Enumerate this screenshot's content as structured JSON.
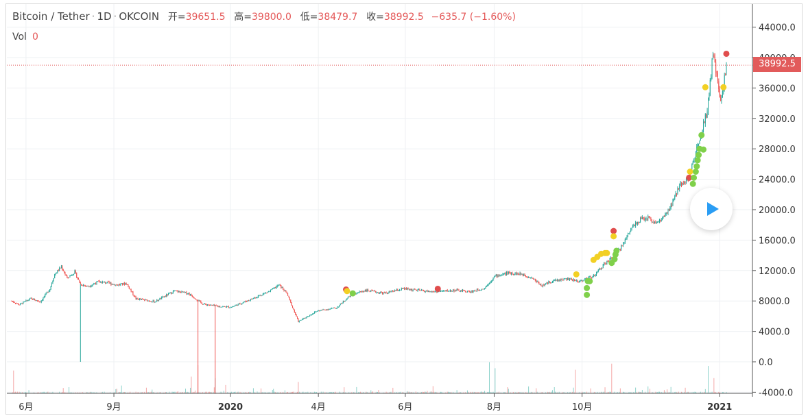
{
  "legend": {
    "symbol": "Bitcoin / Tether",
    "interval": "1D",
    "exchange": "OKCOIN",
    "open_label": "开=",
    "open": "39651.5",
    "high_label": "高=",
    "high": "39800.0",
    "low_label": "低=",
    "low": "38479.7",
    "close_label": "收=",
    "close": "38992.5",
    "change": "−635.7 (−1.60%)",
    "vol_label": "Vol",
    "vol_value": "0"
  },
  "last_price_tag": "38992.5",
  "colors": {
    "up": "#26a69a",
    "down": "#ef5350",
    "accent": "#2a9df4",
    "price_tag": "#e25b5b"
  },
  "controls": {
    "play_icon": "play-icon"
  },
  "chart_data": {
    "type": "candlestick",
    "title": "Bitcoin / Tether · 1D · OKCOIN",
    "y_axis": {
      "ticks": [
        44000,
        40000,
        36000,
        32000,
        28000,
        24000,
        20000,
        16000,
        12000,
        8000,
        4000,
        0,
        -4000
      ],
      "tick_labels": [
        "44000.0",
        "40000.0",
        "36000.0",
        "32000.0",
        "28000.0",
        "24000.0",
        "20000.0",
        "16000.0",
        "12000.0",
        "8000.0",
        "4000.0",
        "0.0",
        "-4000.0"
      ],
      "range": [
        -4200,
        46000
      ],
      "grid": true,
      "position": "right"
    },
    "x_axis": {
      "tick_labels": [
        "6月",
        "9月",
        "2020",
        "4月",
        "6月",
        "8月",
        "10月",
        "2021"
      ],
      "tick_days": [
        15,
        107,
        229,
        321,
        412,
        505,
        597,
        741
      ],
      "bold": [
        false,
        false,
        true,
        false,
        false,
        false,
        false,
        true
      ],
      "grid": true,
      "start_date": "2019-05-17",
      "end_date": "2021-01-24"
    },
    "price_anchors": [
      {
        "day": 0,
        "price": 8000
      },
      {
        "day": 8,
        "price": 7500
      },
      {
        "day": 20,
        "price": 8300
      },
      {
        "day": 30,
        "price": 7900
      },
      {
        "day": 40,
        "price": 9600
      },
      {
        "day": 45,
        "price": 11500
      },
      {
        "day": 52,
        "price": 12500
      },
      {
        "day": 58,
        "price": 11000
      },
      {
        "day": 66,
        "price": 11800
      },
      {
        "day": 72,
        "price": 10200
      },
      {
        "day": 80,
        "price": 9900
      },
      {
        "day": 90,
        "price": 10500
      },
      {
        "day": 100,
        "price": 10400
      },
      {
        "day": 110,
        "price": 10100
      },
      {
        "day": 120,
        "price": 10300
      },
      {
        "day": 130,
        "price": 8300
      },
      {
        "day": 150,
        "price": 7900
      },
      {
        "day": 170,
        "price": 9300
      },
      {
        "day": 185,
        "price": 9000
      },
      {
        "day": 200,
        "price": 7600
      },
      {
        "day": 215,
        "price": 7300
      },
      {
        "day": 230,
        "price": 7200
      },
      {
        "day": 250,
        "price": 8200
      },
      {
        "day": 270,
        "price": 9300
      },
      {
        "day": 280,
        "price": 10100
      },
      {
        "day": 288,
        "price": 9000
      },
      {
        "day": 300,
        "price": 5300
      },
      {
        "day": 320,
        "price": 6700
      },
      {
        "day": 340,
        "price": 7100
      },
      {
        "day": 355,
        "price": 8800
      },
      {
        "day": 370,
        "price": 9400
      },
      {
        "day": 390,
        "price": 9000
      },
      {
        "day": 410,
        "price": 9600
      },
      {
        "day": 440,
        "price": 9200
      },
      {
        "day": 465,
        "price": 9400
      },
      {
        "day": 480,
        "price": 9200
      },
      {
        "day": 495,
        "price": 9700
      },
      {
        "day": 505,
        "price": 11200
      },
      {
        "day": 520,
        "price": 11700
      },
      {
        "day": 535,
        "price": 11500
      },
      {
        "day": 545,
        "price": 11000
      },
      {
        "day": 555,
        "price": 10000
      },
      {
        "day": 565,
        "price": 10600
      },
      {
        "day": 580,
        "price": 10900
      },
      {
        "day": 595,
        "price": 10600
      },
      {
        "day": 610,
        "price": 11400
      },
      {
        "day": 620,
        "price": 12800
      },
      {
        "day": 630,
        "price": 13800
      },
      {
        "day": 640,
        "price": 15500
      },
      {
        "day": 648,
        "price": 17500
      },
      {
        "day": 655,
        "price": 18500
      },
      {
        "day": 665,
        "price": 19000
      },
      {
        "day": 675,
        "price": 18200
      },
      {
        "day": 685,
        "price": 19300
      },
      {
        "day": 692,
        "price": 21000
      },
      {
        "day": 700,
        "price": 23500
      },
      {
        "day": 708,
        "price": 24000
      },
      {
        "day": 716,
        "price": 27500
      },
      {
        "day": 722,
        "price": 30500
      },
      {
        "day": 728,
        "price": 33000
      },
      {
        "day": 734,
        "price": 40500
      },
      {
        "day": 738,
        "price": 37500
      },
      {
        "day": 742,
        "price": 34000
      },
      {
        "day": 748,
        "price": 38992.5
      }
    ],
    "spikes": [
      {
        "day": 72,
        "low": 0
      },
      {
        "day": 195,
        "low": -4200
      },
      {
        "day": 213,
        "low": -4200
      }
    ],
    "signals": [
      {
        "day": 350,
        "price": 9500,
        "color": "red"
      },
      {
        "day": 351,
        "price": 9300,
        "color": "yellow"
      },
      {
        "day": 357,
        "price": 9000,
        "color": "green"
      },
      {
        "day": 446,
        "price": 9600,
        "color": "red"
      },
      {
        "day": 591,
        "price": 11500,
        "color": "yellow"
      },
      {
        "day": 603,
        "price": 10600,
        "color": "green"
      },
      {
        "day": 605,
        "price": 10600,
        "color": "green"
      },
      {
        "day": 602,
        "price": 9700,
        "color": "green"
      },
      {
        "day": 602,
        "price": 8800,
        "color": "green"
      },
      {
        "day": 609,
        "price": 13400,
        "color": "yellow"
      },
      {
        "day": 613,
        "price": 13800,
        "color": "yellow"
      },
      {
        "day": 617,
        "price": 14200,
        "color": "yellow"
      },
      {
        "day": 621,
        "price": 14300,
        "color": "yellow"
      },
      {
        "day": 623,
        "price": 14300,
        "color": "yellow"
      },
      {
        "day": 630,
        "price": 17200,
        "color": "red"
      },
      {
        "day": 630,
        "price": 16500,
        "color": "yellow"
      },
      {
        "day": 628,
        "price": 13000,
        "color": "green"
      },
      {
        "day": 631,
        "price": 13500,
        "color": "green"
      },
      {
        "day": 632,
        "price": 14100,
        "color": "green"
      },
      {
        "day": 633,
        "price": 14600,
        "color": "green"
      },
      {
        "day": 709,
        "price": 24200,
        "color": "red"
      },
      {
        "day": 710,
        "price": 25000,
        "color": "yellow"
      },
      {
        "day": 713,
        "price": 23400,
        "color": "green"
      },
      {
        "day": 714,
        "price": 24200,
        "color": "green"
      },
      {
        "day": 716,
        "price": 25000,
        "color": "green"
      },
      {
        "day": 717,
        "price": 25700,
        "color": "green"
      },
      {
        "day": 718,
        "price": 26500,
        "color": "green"
      },
      {
        "day": 719,
        "price": 27200,
        "color": "green"
      },
      {
        "day": 720,
        "price": 28000,
        "color": "green"
      },
      {
        "day": 724,
        "price": 27900,
        "color": "green"
      },
      {
        "day": 722,
        "price": 29800,
        "color": "green"
      },
      {
        "day": 726,
        "price": 36100,
        "color": "yellow"
      },
      {
        "day": 745,
        "price": 36100,
        "color": "yellow"
      },
      {
        "day": 748,
        "price": 40500,
        "color": "red"
      }
    ],
    "volume_peaks": [
      {
        "day": 2,
        "value": 3000
      },
      {
        "day": 110,
        "value": 600
      },
      {
        "day": 188,
        "value": 2200
      },
      {
        "day": 195,
        "value": 3700
      },
      {
        "day": 213,
        "value": 2000
      },
      {
        "day": 300,
        "value": 1500
      },
      {
        "day": 500,
        "value": 4100
      },
      {
        "day": 506,
        "value": 3300
      },
      {
        "day": 590,
        "value": 3100
      },
      {
        "day": 628,
        "value": 3900
      },
      {
        "day": 729,
        "value": 3600
      },
      {
        "day": 735,
        "value": 2000
      }
    ]
  }
}
